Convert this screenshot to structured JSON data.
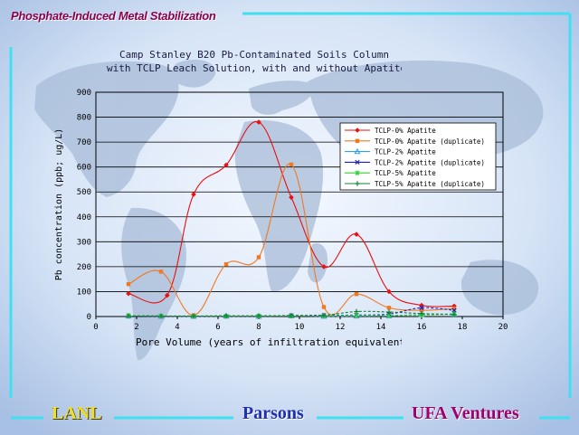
{
  "header": {
    "title": "Phosphate-Induced Metal Stabilization"
  },
  "footer": {
    "left": "LANL",
    "center": "Parsons",
    "right": "UFA Ventures"
  },
  "colors": {
    "frame": "#40e0f0",
    "title": "#8a0050"
  },
  "chart_data": {
    "type": "line",
    "title_lines": [
      "Camp Stanley B20 Pb-Contaminated Soils Column",
      "with TCLP Leach Solution, with and without Apatite"
    ],
    "xlabel": "Pore Volume (years of infiltration equivalent)",
    "ylabel": "Pb concentration (ppb; ug/L)",
    "xlim": [
      0,
      20
    ],
    "ylim": [
      0,
      900
    ],
    "xticks": [
      0,
      2,
      4,
      6,
      8,
      10,
      12,
      14,
      16,
      18,
      20
    ],
    "yticks": [
      0,
      100,
      200,
      300,
      400,
      500,
      600,
      700,
      800,
      900
    ],
    "grid": true,
    "legend_position": "top-right",
    "series": [
      {
        "name": "TCLP-0% Apatite",
        "color": "#e81010",
        "marker": "diamond",
        "x": [
          1.6,
          3.5,
          4.8,
          6.4,
          8.0,
          9.6,
          11.2,
          12.8,
          14.4,
          16.0,
          17.6
        ],
        "y": [
          92,
          85,
          490,
          608,
          780,
          478,
          200,
          330,
          100,
          45,
          42
        ]
      },
      {
        "name": "TCLP-0% Apatite (duplicate)",
        "color": "#f07820",
        "marker": "square",
        "x": [
          1.6,
          3.2,
          4.8,
          6.4,
          8.0,
          9.6,
          11.2,
          12.8,
          14.4,
          16.0,
          17.6
        ],
        "y": [
          130,
          180,
          5,
          210,
          238,
          610,
          38,
          90,
          35,
          25,
          32
        ]
      },
      {
        "name": "TCLP-2% Apatite",
        "color": "#30a0e0",
        "marker": "triangle",
        "x": [
          1.6,
          3.2,
          4.8,
          6.4,
          8.0,
          9.6,
          11.2,
          12.8,
          14.4,
          16.0,
          17.6
        ],
        "y": [
          2,
          1,
          1,
          2,
          1,
          3,
          1,
          2,
          3,
          8,
          10
        ]
      },
      {
        "name": "TCLP-2% Apatite (duplicate)",
        "color": "#2020c0",
        "marker": "x",
        "x": [
          1.6,
          3.2,
          4.8,
          6.4,
          8.0,
          9.6,
          11.2,
          12.8,
          14.4,
          16.0,
          17.6
        ],
        "y": [
          3,
          2,
          1,
          1,
          2,
          4,
          5,
          6,
          10,
          35,
          25
        ]
      },
      {
        "name": "TCLP-5% Apatite",
        "color": "#30d030",
        "marker": "star",
        "x": [
          1.6,
          3.2,
          4.8,
          6.4,
          8.0,
          9.6,
          11.2,
          12.8,
          14.4,
          16.0,
          17.6
        ],
        "y": [
          4,
          2,
          1,
          1,
          2,
          2,
          3,
          4,
          4,
          6,
          10
        ]
      },
      {
        "name": "TCLP-5% Apatite (duplicate)",
        "color": "#108030",
        "marker": "plus",
        "x": [
          1.6,
          3.2,
          4.8,
          6.4,
          8.0,
          9.6,
          11.2,
          12.8,
          14.4,
          16.0,
          17.6
        ],
        "y": [
          2,
          2,
          2,
          3,
          3,
          4,
          5,
          20,
          18,
          12,
          8
        ]
      }
    ]
  }
}
